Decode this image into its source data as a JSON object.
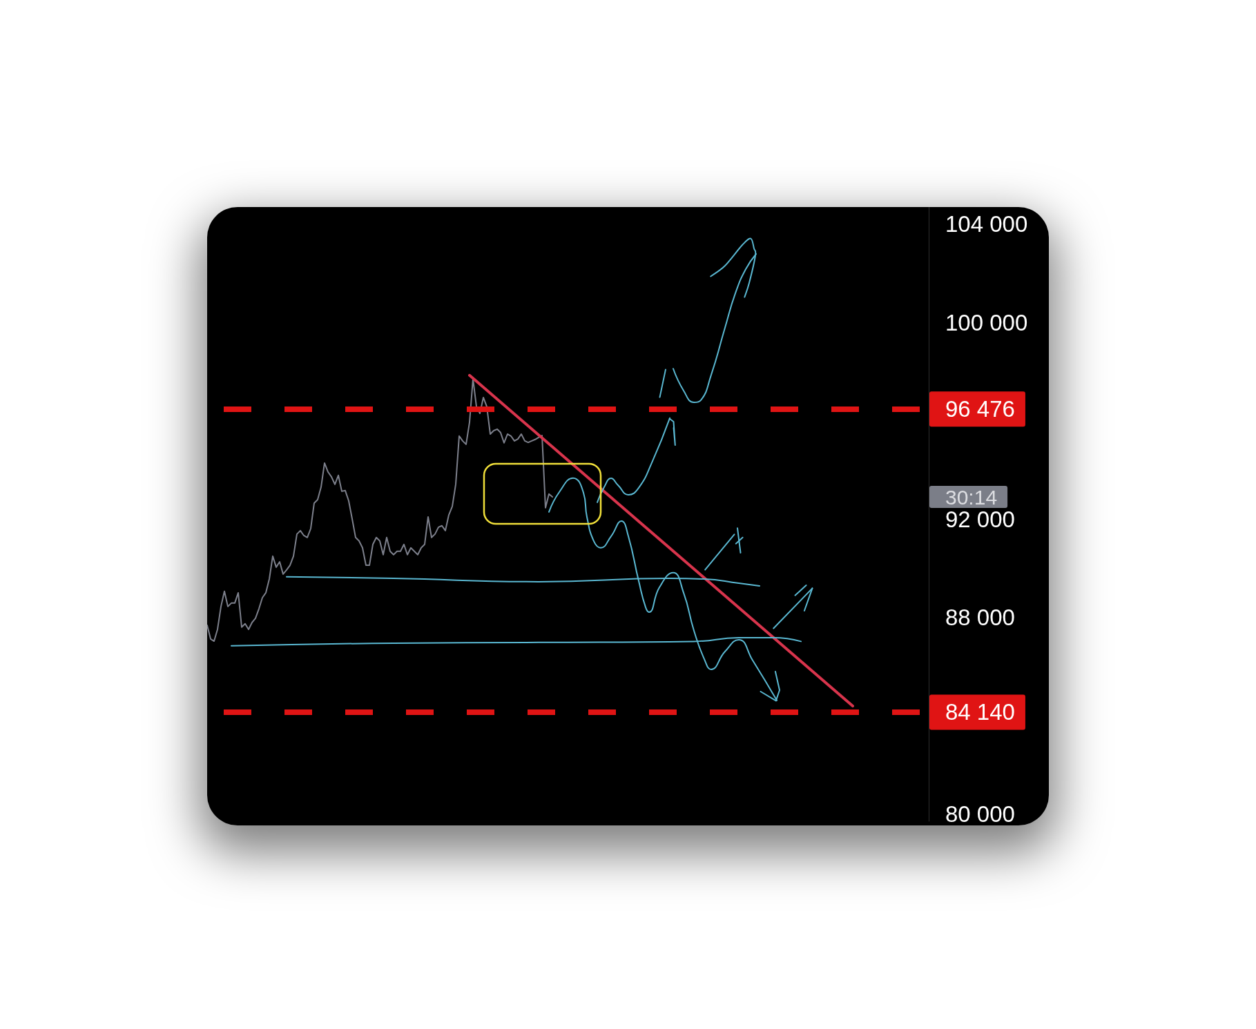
{
  "chart_data": {
    "type": "line",
    "categories": [
      null,
      null,
      null,
      null,
      null,
      null,
      null,
      null,
      null,
      null,
      null,
      null,
      null,
      null,
      null,
      null,
      null,
      null,
      null,
      null,
      null,
      null,
      null,
      null,
      null,
      null,
      null,
      null,
      null,
      null,
      null,
      null,
      null,
      null,
      null,
      null,
      null,
      null,
      null,
      null,
      null,
      null,
      null,
      null,
      null,
      null,
      null,
      null,
      null,
      null,
      null,
      null,
      null,
      null,
      null,
      null,
      null,
      null,
      null,
      null,
      null,
      null,
      null,
      null,
      null,
      null,
      null,
      null,
      null,
      null,
      null,
      null,
      null,
      null,
      null,
      null,
      null,
      null,
      null,
      null,
      null,
      null,
      null,
      null,
      null,
      null,
      null,
      null,
      null,
      null,
      null,
      null,
      null,
      null,
      null,
      null,
      null,
      null,
      null,
      null,
      null,
      null,
      null,
      null,
      null,
      null,
      null,
      null,
      null,
      null,
      null,
      null,
      null,
      null,
      null,
      null,
      null,
      null,
      null,
      null,
      null,
      null,
      null,
      null,
      null,
      null,
      null,
      null,
      null,
      null,
      null,
      null,
      null,
      null,
      null,
      null,
      null,
      null,
      null,
      null,
      null,
      null,
      null,
      null,
      null,
      null,
      null,
      null,
      null,
      null,
      null,
      null,
      null,
      null,
      null,
      null,
      null,
      null,
      null,
      null,
      null,
      null,
      null,
      null,
      null,
      null,
      null,
      null,
      null,
      null,
      null,
      null,
      null,
      null,
      null,
      null,
      null,
      null,
      null,
      null,
      null,
      null,
      null,
      null,
      null,
      null,
      null,
      null,
      null,
      null,
      null,
      null,
      null,
      null,
      null,
      null,
      null,
      null,
      null,
      null,
      null,
      null,
      null,
      null,
      null,
      null,
      null,
      null,
      null,
      null
    ],
    "ylim": [
      79700,
      104700
    ],
    "yticks": [
      {
        "value": 80000,
        "label": "80 000"
      },
      {
        "value": 88000,
        "label": "88 000"
      },
      {
        "value": 92000,
        "label": "92 000"
      },
      {
        "value": 100000,
        "label": "100 000"
      },
      {
        "value": 104000,
        "label": "104 000"
      }
    ],
    "tick_labels": "y",
    "series": [
      {
        "color": "#7d808c",
        "values": [
          87680,
          87120,
          87030,
          87510,
          88440,
          89060,
          88440,
          88580,
          88580,
          89000,
          87600,
          87740,
          87510,
          87790,
          87960,
          88350,
          88800,
          89000,
          89560,
          90490,
          90040,
          90260,
          89760,
          89930,
          90120,
          90490,
          91390,
          91530,
          91330,
          91250,
          91610,
          92650,
          92790,
          93300,
          94280,
          93920,
          93720,
          93410,
          93780,
          93130,
          93160,
          92740,
          92010,
          91250,
          91110,
          90830,
          90120,
          90120,
          90970,
          91250,
          91110,
          90550,
          91250,
          90690,
          90550,
          90690,
          90690,
          90970,
          90550,
          90830,
          90690,
          90550,
          90830,
          90970,
          92090,
          91250,
          91390,
          91670,
          91730,
          91530,
          92170,
          92510,
          93410,
          95380,
          95180,
          95040,
          95940,
          97710,
          96580,
          96300,
          96950,
          96580,
          95460,
          95600,
          95660,
          95520,
          95100,
          95460,
          95380,
          95180,
          95260,
          95460,
          95180,
          95120,
          95180,
          95240,
          95320,
          95400,
          92460,
          93020,
          92900,
          null,
          null,
          null,
          null,
          null,
          null,
          null,
          null,
          null,
          null,
          null,
          null,
          null,
          null,
          null,
          null,
          null,
          null,
          null,
          null,
          null,
          null,
          null,
          null,
          null,
          null,
          null,
          null,
          null,
          null,
          null,
          null,
          null,
          null,
          null,
          null,
          null,
          null,
          null,
          null,
          null,
          null,
          null,
          null,
          null,
          null,
          null,
          null,
          null,
          null,
          null,
          null,
          null,
          null,
          null,
          null,
          null,
          null,
          null,
          null,
          null,
          null,
          null,
          null,
          null,
          null,
          null,
          null,
          null,
          null,
          null,
          null,
          null,
          null,
          null,
          null,
          null,
          null,
          null,
          null,
          null,
          null,
          null,
          null,
          null,
          null,
          null,
          null,
          null,
          null,
          null,
          null,
          null,
          null,
          null,
          null,
          null,
          null,
          null,
          null,
          null,
          null,
          null,
          null,
          null,
          null,
          null,
          null,
          null
        ]
      },
      {
        "color": "#d8344c",
        "values": [
          null,
          null,
          null,
          null,
          null,
          null,
          null,
          null,
          null,
          null,
          null,
          null,
          null,
          null,
          null,
          null,
          null,
          null,
          null,
          null,
          null,
          null,
          null,
          null,
          null,
          null,
          null,
          null,
          null,
          null,
          null,
          null,
          null,
          null,
          null,
          null,
          null,
          null,
          null,
          null,
          null,
          null,
          null,
          null,
          null,
          null,
          null,
          null,
          null,
          null,
          null,
          null,
          null,
          null,
          null,
          null,
          null,
          null,
          null,
          null,
          null,
          null,
          null,
          null,
          null,
          null,
          null,
          null,
          null,
          null,
          null,
          null,
          null,
          null,
          null,
          null,
          97850,
          null,
          null,
          null,
          null,
          null,
          null,
          null,
          null,
          null,
          null,
          null,
          null,
          null,
          null,
          null,
          null,
          null,
          null,
          null,
          null,
          null,
          null,
          null,
          null,
          null,
          null,
          null,
          null,
          null,
          null,
          null,
          null,
          null,
          null,
          null,
          null,
          null,
          null,
          null,
          null,
          null,
          null,
          null,
          null,
          null,
          null,
          null,
          null,
          null,
          null,
          null,
          null,
          null,
          null,
          null,
          null,
          null,
          null,
          null,
          null,
          null,
          null,
          null,
          null,
          null,
          null,
          null,
          null,
          null,
          null,
          null,
          null,
          null,
          null,
          null,
          null,
          null,
          null,
          null,
          null,
          null,
          null,
          null,
          null,
          null,
          null,
          null,
          null,
          null,
          null,
          null,
          null,
          null,
          null,
          null,
          null,
          null,
          null,
          null,
          null,
          null,
          null,
          null,
          null,
          null,
          null,
          null,
          null,
          null,
          null,
          84390,
          null,
          null,
          null,
          null,
          null,
          null,
          null,
          null,
          null,
          null,
          null,
          null,
          null,
          null,
          null,
          null,
          null,
          null,
          null,
          null,
          null,
          null
        ]
      },
      {
        "color": "#5ab8d2",
        "values": [
          null,
          null,
          null,
          null,
          null,
          null,
          null,
          null,
          null,
          null,
          null,
          null,
          null,
          null,
          null,
          null,
          null,
          null,
          null,
          null,
          null,
          null,
          null,
          89650,
          null,
          null,
          null,
          null,
          null,
          null,
          null,
          null,
          null,
          null,
          null,
          null,
          null,
          null,
          null,
          null,
          null,
          null,
          null,
          null,
          null,
          null,
          null,
          null,
          null,
          null,
          null,
          null,
          null,
          null,
          89590,
          null,
          null,
          null,
          null,
          null,
          null,
          null,
          null,
          null,
          null,
          null,
          null,
          null,
          null,
          null,
          null,
          null,
          null,
          null,
          null,
          null,
          null,
          null,
          null,
          null,
          null,
          null,
          null,
          null,
          null,
          null,
          null,
          null,
          null,
          null,
          null,
          null,
          null,
          null,
          null,
          null,
          89450,
          null,
          null,
          null,
          null,
          null,
          null,
          null,
          null,
          null,
          null,
          null,
          null,
          null,
          null,
          null,
          null,
          null,
          null,
          null,
          null,
          null,
          null,
          null,
          null,
          null,
          null,
          null,
          null,
          null,
          null,
          null,
          null,
          null,
          null,
          null,
          null,
          null,
          89590,
          null,
          null,
          null,
          null,
          null,
          null,
          null,
          null,
          null,
          89560,
          null,
          null,
          null,
          null,
          null,
          null,
          null,
          null,
          null,
          89390,
          null,
          null,
          null,
          null,
          null,
          89280,
          null,
          null,
          null,
          null,
          null,
          null,
          null,
          null,
          null,
          null,
          null,
          null,
          null,
          null,
          null,
          null,
          null,
          null,
          null,
          null,
          null,
          null,
          null,
          null,
          null,
          null,
          null,
          null,
          null,
          null,
          null,
          null,
          null,
          null,
          null,
          null,
          null,
          null,
          null,
          null,
          null,
          null,
          null,
          null,
          null,
          null,
          null,
          null,
          null
        ]
      },
      {
        "color": "#5ab8d2",
        "values": [
          null,
          null,
          null,
          null,
          null,
          null,
          null,
          86840,
          null,
          null,
          null,
          null,
          null,
          null,
          null,
          null,
          null,
          null,
          null,
          null,
          null,
          null,
          null,
          null,
          null,
          null,
          null,
          null,
          null,
          null,
          null,
          null,
          null,
          null,
          null,
          null,
          null,
          null,
          null,
          null,
          null,
          null,
          null,
          null,
          null,
          null,
          null,
          null,
          null,
          null,
          null,
          null,
          null,
          null,
          86950,
          null,
          null,
          null,
          null,
          null,
          null,
          null,
          null,
          null,
          null,
          null,
          null,
          null,
          null,
          null,
          null,
          null,
          null,
          null,
          null,
          null,
          null,
          null,
          null,
          null,
          null,
          null,
          null,
          null,
          null,
          null,
          null,
          null,
          null,
          null,
          null,
          null,
          null,
          null,
          null,
          null,
          86980,
          null,
          null,
          null,
          null,
          null,
          null,
          null,
          null,
          null,
          null,
          null,
          null,
          null,
          null,
          null,
          null,
          null,
          null,
          null,
          null,
          null,
          null,
          null,
          null,
          null,
          null,
          null,
          null,
          null,
          null,
          null,
          null,
          null,
          null,
          null,
          null,
          null,
          null,
          null,
          null,
          null,
          null,
          null,
          null,
          87020,
          null,
          null,
          null,
          null,
          null,
          null,
          null,
          null,
          null,
          null,
          null,
          null,
          87170,
          null,
          null,
          null,
          null,
          null,
          null,
          null,
          null,
          null,
          87170,
          null,
          null,
          null,
          null,
          null,
          null,
          null,
          87020,
          null,
          null,
          null,
          null,
          null,
          null,
          null,
          null,
          null,
          null,
          null,
          null,
          null,
          null,
          null,
          null,
          null,
          null,
          null,
          null,
          null,
          null,
          null,
          null,
          null,
          null,
          null,
          null,
          null,
          null,
          null,
          null,
          null,
          null,
          null,
          null,
          null
        ]
      },
      {
        "color": "#5ab8d2",
        "values": [
          null,
          null,
          null,
          null,
          null,
          null,
          null,
          null,
          null,
          null,
          null,
          null,
          null,
          null,
          null,
          null,
          null,
          null,
          null,
          null,
          null,
          null,
          null,
          null,
          null,
          null,
          null,
          null,
          null,
          null,
          null,
          null,
          null,
          null,
          null,
          null,
          null,
          null,
          null,
          null,
          null,
          null,
          null,
          null,
          null,
          null,
          null,
          null,
          null,
          null,
          null,
          null,
          null,
          null,
          null,
          null,
          null,
          null,
          null,
          null,
          null,
          null,
          null,
          null,
          null,
          null,
          null,
          null,
          null,
          null,
          null,
          null,
          null,
          null,
          null,
          null,
          null,
          null,
          null,
          null,
          null,
          null,
          null,
          null,
          null,
          null,
          null,
          null,
          null,
          null,
          null,
          null,
          null,
          null,
          null,
          null,
          null,
          null,
          null,
          92290,
          null,
          null,
          93100,
          null,
          null,
          null,
          93670,
          null,
          null,
          93070,
          92090,
          null,
          91100,
          null,
          90830,
          null,
          null,
          91300,
          null,
          null,
          91920,
          null,
          91300,
          null,
          null,
          89480,
          null,
          88410,
          88210,
          null,
          null,
          89220,
          null,
          null,
          null,
          89820,
          null,
          null,
          89000,
          null,
          null,
          87460,
          null,
          null,
          86300,
          null,
          85880,
          null,
          null,
          null,
          86610,
          null,
          null,
          null,
          87090,
          null,
          null,
          null,
          86250,
          null,
          null,
          null,
          null,
          null,
          null,
          84620,
          null,
          null,
          null,
          null,
          null,
          null,
          null,
          null,
          null,
          null,
          null,
          null,
          null,
          null,
          null,
          null,
          null,
          null,
          null,
          null,
          null,
          null,
          null,
          null,
          null,
          null,
          null,
          null,
          null,
          null,
          null,
          null,
          null,
          null,
          null,
          null,
          null,
          null,
          null,
          null,
          null,
          null,
          null,
          null
        ]
      },
      {
        "color": "#5ab8d2",
        "values": [
          null,
          null,
          null,
          null,
          null,
          null,
          null,
          null,
          null,
          null,
          null,
          null,
          null,
          null,
          null,
          null,
          null,
          null,
          null,
          null,
          null,
          null,
          null,
          null,
          null,
          null,
          null,
          null,
          null,
          null,
          null,
          null,
          null,
          null,
          null,
          null,
          null,
          null,
          null,
          null,
          null,
          null,
          null,
          null,
          null,
          null,
          null,
          null,
          null,
          null,
          null,
          null,
          null,
          null,
          null,
          null,
          null,
          null,
          null,
          null,
          null,
          null,
          null,
          null,
          null,
          null,
          null,
          null,
          null,
          null,
          null,
          null,
          null,
          null,
          null,
          null,
          null,
          null,
          null,
          null,
          null,
          null,
          null,
          null,
          null,
          null,
          null,
          null,
          null,
          null,
          null,
          null,
          null,
          null,
          null,
          null,
          null,
          null,
          null,
          null,
          null,
          null,
          null,
          null,
          null,
          null,
          null,
          null,
          null,
          null,
          null,
          null,
          null,
          92680,
          null,
          93300,
          null,
          93660,
          null,
          93380,
          null,
          null,
          92990,
          null,
          null,
          93270,
          null,
          null,
          null,
          94360,
          null,
          null,
          null,
          null,
          96110,
          null,
          null,
          null,
          null,
          null,
          null,
          null,
          null,
          null,
          null,
          null,
          null,
          null,
          null,
          null,
          null,
          null,
          null,
          null,
          null,
          null,
          null,
          null,
          null,
          null,
          null,
          null,
          null,
          null,
          null,
          null,
          null,
          null,
          null,
          null,
          null,
          null,
          null,
          null,
          null,
          null,
          null,
          null,
          null,
          null,
          null,
          null,
          null,
          null,
          null,
          null,
          null,
          null,
          null,
          null,
          null,
          null,
          null,
          null,
          null,
          null,
          null,
          null,
          null,
          null,
          null,
          null,
          null,
          null,
          null,
          null,
          null,
          null,
          null,
          null
        ]
      },
      {
        "color": "#5ab8d2",
        "values": [
          null,
          null,
          null,
          null,
          null,
          null,
          null,
          null,
          null,
          null,
          null,
          null,
          null,
          null,
          null,
          null,
          null,
          null,
          null,
          null,
          null,
          null,
          null,
          null,
          null,
          null,
          null,
          null,
          null,
          null,
          null,
          null,
          null,
          null,
          null,
          null,
          null,
          null,
          null,
          null,
          null,
          null,
          null,
          null,
          null,
          null,
          null,
          null,
          null,
          null,
          null,
          null,
          null,
          null,
          null,
          null,
          null,
          null,
          null,
          null,
          null,
          null,
          null,
          null,
          null,
          null,
          null,
          null,
          null,
          null,
          null,
          null,
          null,
          null,
          null,
          null,
          null,
          null,
          null,
          null,
          null,
          null,
          null,
          null,
          null,
          null,
          null,
          null,
          null,
          null,
          null,
          null,
          null,
          null,
          null,
          null,
          null,
          null,
          null,
          null,
          null,
          null,
          null,
          null,
          null,
          null,
          null,
          null,
          null,
          null,
          null,
          null,
          null,
          null,
          null,
          null,
          null,
          null,
          null,
          null,
          null,
          null,
          null,
          null,
          null,
          null,
          null,
          null,
          null,
          null,
          null,
          null,
          null,
          null,
          null,
          98120,
          null,
          null,
          97230,
          null,
          null,
          96750,
          null,
          96840,
          null,
          null,
          97870,
          null,
          null,
          null,
          99790,
          null,
          null,
          101190,
          null,
          null,
          102170,
          null,
          null,
          102790,
          null,
          null,
          null,
          null,
          null,
          null,
          null,
          null,
          null,
          null,
          null,
          null,
          null,
          null,
          null,
          null,
          null,
          null,
          null,
          null,
          null,
          null,
          null,
          null,
          null,
          null,
          null,
          null,
          null,
          null,
          null,
          null,
          null,
          null,
          null,
          null,
          null,
          null,
          null,
          null,
          null,
          null,
          null,
          null,
          null,
          null,
          null,
          null,
          null,
          null
        ]
      }
    ],
    "ref_lines": [
      {
        "axis": "y",
        "value": 96476,
        "label": "96 476",
        "color": "#e01414",
        "line_style": "dashed"
      },
      {
        "axis": "y",
        "value": 84140,
        "label": "84 140",
        "color": "#e01414",
        "line_style": "dashed"
      }
    ],
    "annotations": [
      "30:14"
    ]
  }
}
